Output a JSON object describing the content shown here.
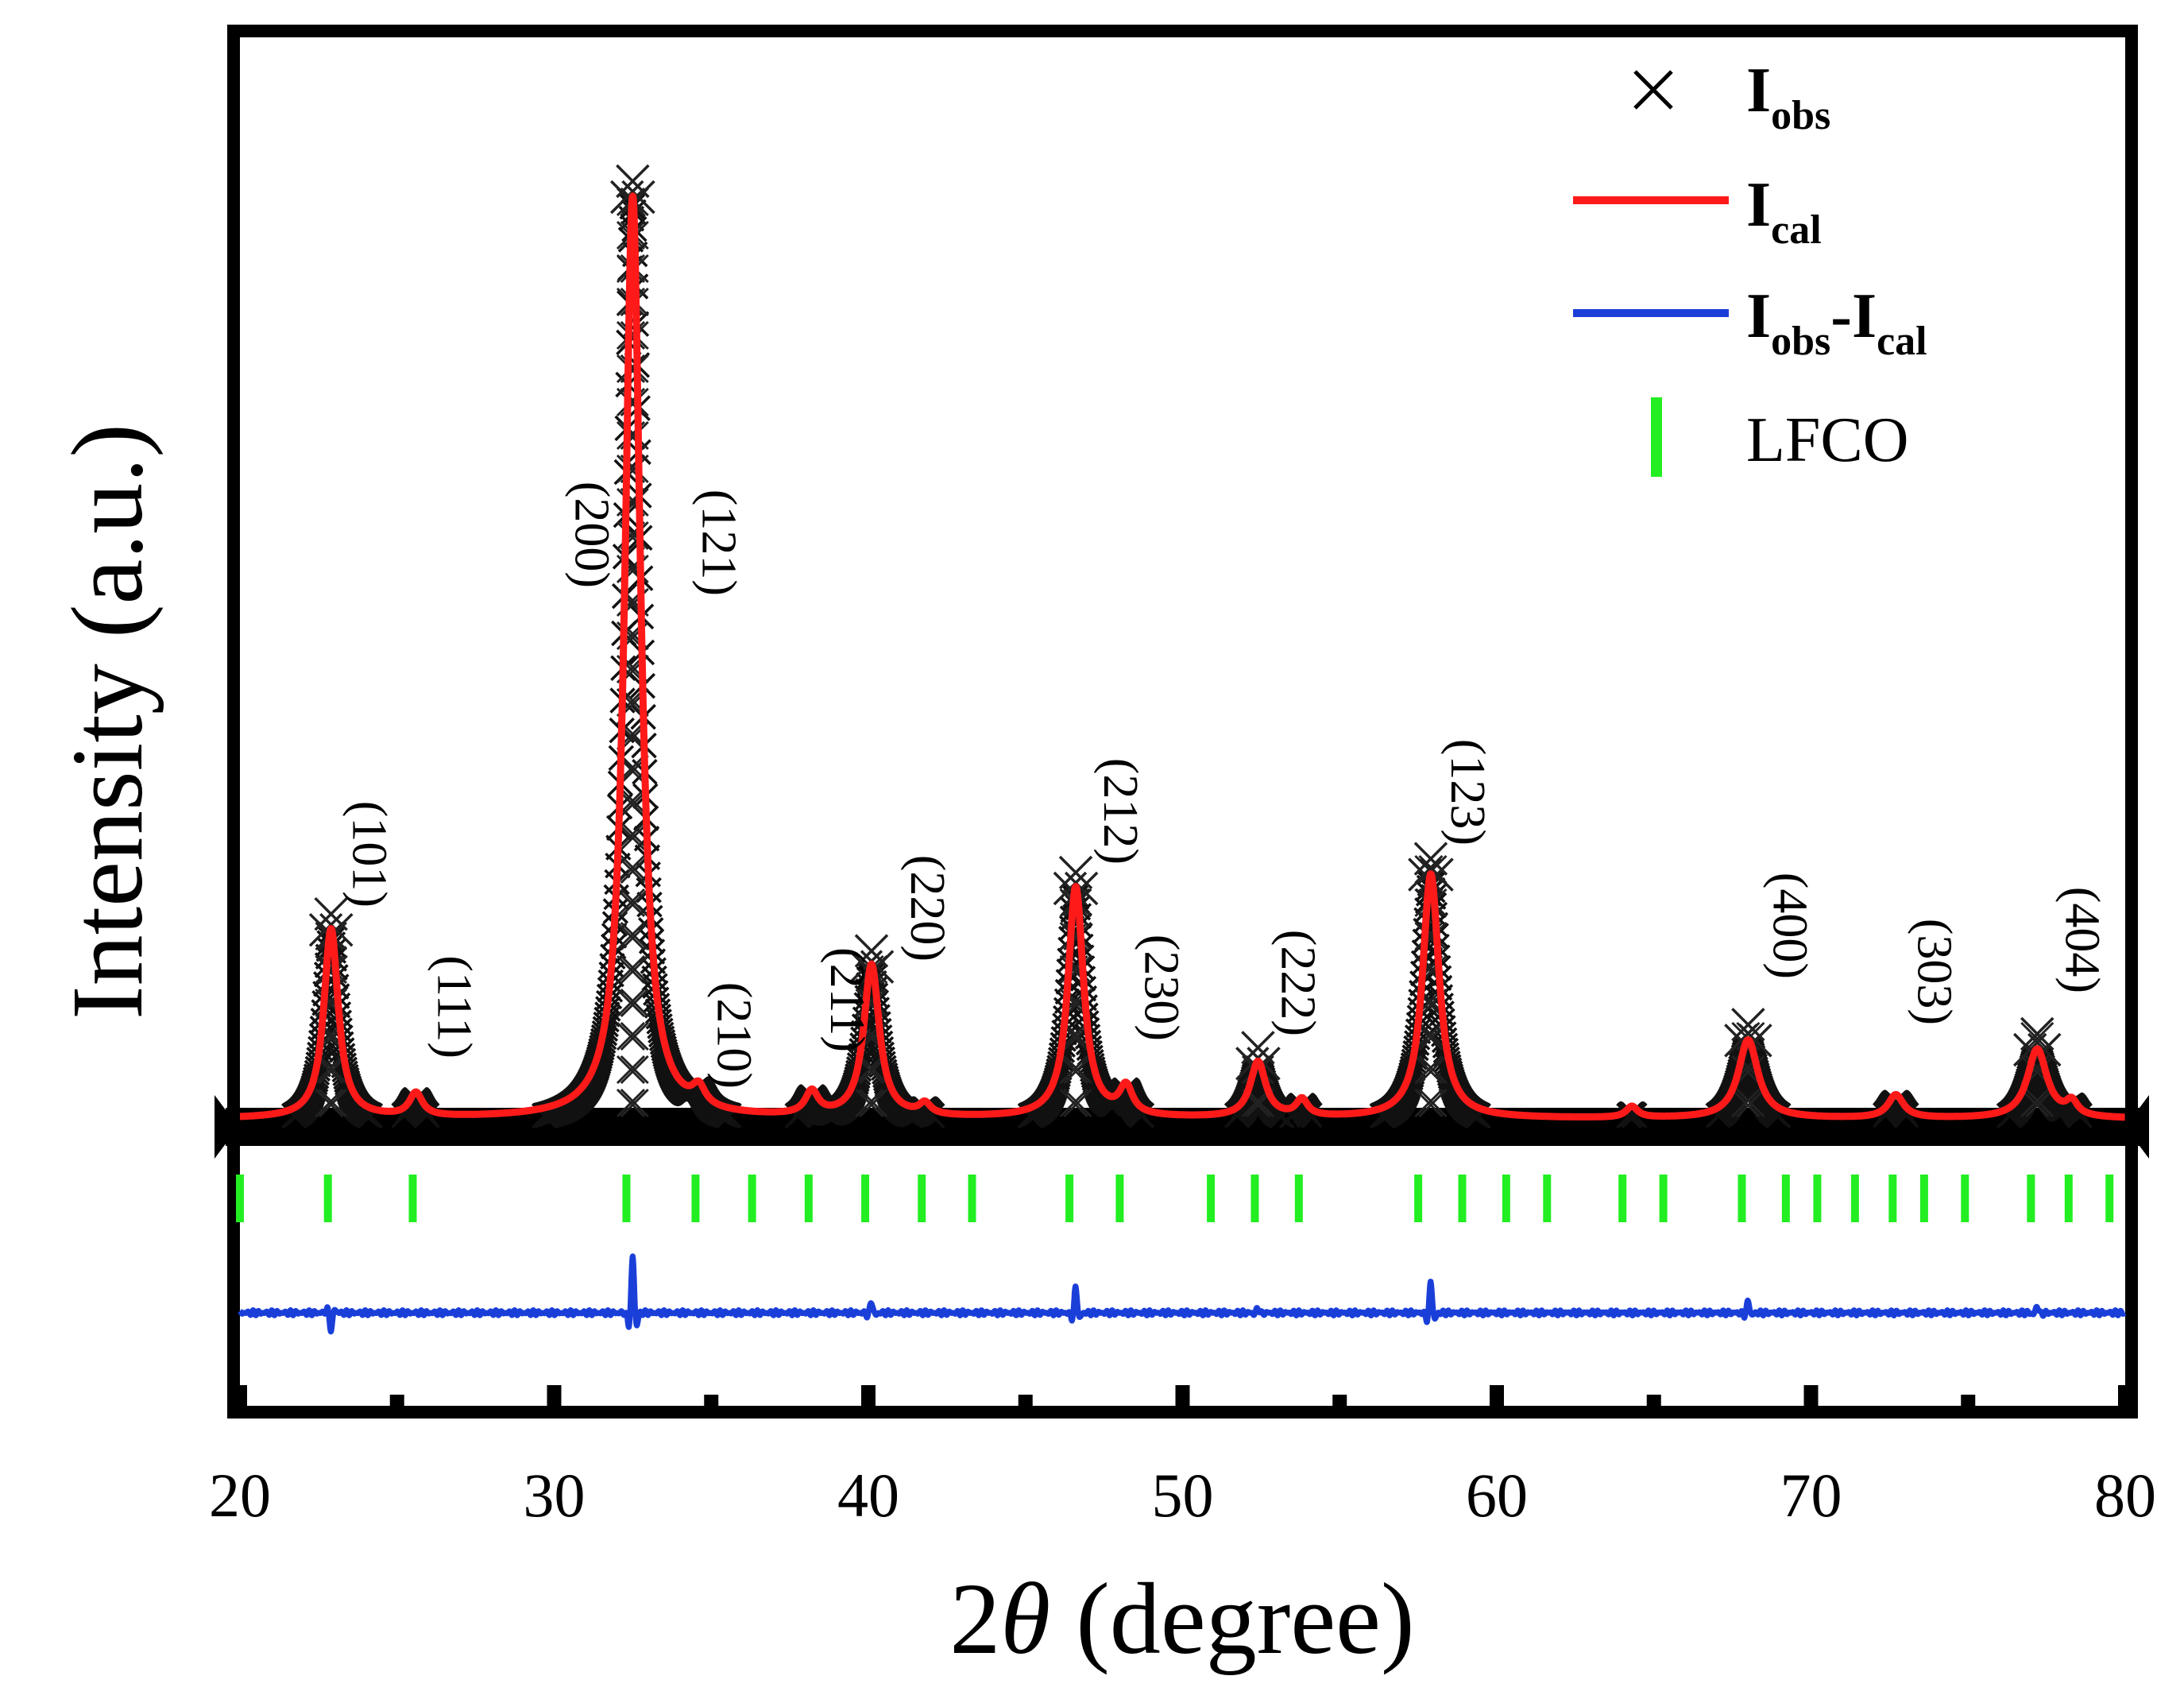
{
  "chart_data": {
    "type": "line",
    "xlabel_prefix": "2",
    "xlabel_symbol": "θ",
    "xlabel_suffix": " (degree)",
    "ylabel": "Intensity (a.u.)",
    "xlim": [
      20,
      80
    ],
    "xticks": [
      "20",
      "30",
      "40",
      "50",
      "60",
      "70",
      "80"
    ],
    "legend_position": "top-right",
    "legend": [
      {
        "key": "obs",
        "main": "I",
        "sub": "obs",
        "marker": "x",
        "color": "#000000"
      },
      {
        "key": "cal",
        "main": "I",
        "sub": "cal",
        "marker": "line",
        "color": "#ff1a1a"
      },
      {
        "key": "diff",
        "main": "I",
        "sub": "obs",
        "main2": "-I",
        "sub2": "cal",
        "marker": "line",
        "color": "#1a3fd9"
      },
      {
        "key": "bragg",
        "text": "LFCO",
        "marker": "vbar",
        "color": "#22ee22"
      }
    ],
    "peaks": [
      {
        "x": 22.9,
        "h": 0.205,
        "w": 0.28,
        "label": "(101)"
      },
      {
        "x": 25.6,
        "h": 0.025,
        "w": 0.25,
        "label": "(111)"
      },
      {
        "x": 32.5,
        "h": 1.0,
        "w": 0.3,
        "label": "(200)"
      },
      {
        "x": 32.5,
        "h": 0.0,
        "w": 0.3,
        "label": "(121)"
      },
      {
        "x": 34.6,
        "h": 0.02,
        "w": 0.25,
        "label": "(210)"
      },
      {
        "x": 38.2,
        "h": 0.025,
        "w": 0.25,
        "label": "(211)"
      },
      {
        "x": 40.1,
        "h": 0.165,
        "w": 0.3,
        "label": "(220)"
      },
      {
        "x": 46.6,
        "h": 0.25,
        "w": 0.3,
        "label": "(212)"
      },
      {
        "x": 48.2,
        "h": 0.03,
        "w": 0.25,
        "label": "(230)"
      },
      {
        "x": 52.4,
        "h": 0.06,
        "w": 0.3,
        "label": "(222)"
      },
      {
        "x": 57.9,
        "h": 0.265,
        "w": 0.32,
        "label": "(123)"
      },
      {
        "x": 68.0,
        "h": 0.085,
        "w": 0.38,
        "label": "(400)"
      },
      {
        "x": 72.7,
        "h": 0.025,
        "w": 0.3,
        "label": "(303)"
      },
      {
        "x": 77.2,
        "h": 0.075,
        "w": 0.38,
        "label": "(404)"
      }
    ],
    "minor_peaks": [
      {
        "x": 41.8,
        "h": 0.012
      },
      {
        "x": 53.8,
        "h": 0.018
      },
      {
        "x": 64.3,
        "h": 0.012
      },
      {
        "x": 78.3,
        "h": 0.015
      }
    ],
    "bragg_positions": [
      20.0,
      22.8,
      25.5,
      32.3,
      34.5,
      36.3,
      38.1,
      39.9,
      41.7,
      43.3,
      46.4,
      48.0,
      50.9,
      52.3,
      53.7,
      57.5,
      58.9,
      60.3,
      61.6,
      64.0,
      65.3,
      67.8,
      69.2,
      70.2,
      71.4,
      72.6,
      73.6,
      74.9,
      77.0,
      78.2,
      79.5
    ],
    "diff_spikes": [
      {
        "x": 22.9,
        "a": -0.3
      },
      {
        "x": 32.5,
        "a": 1.0
      },
      {
        "x": 40.1,
        "a": 0.2
      },
      {
        "x": 46.6,
        "a": 0.45
      },
      {
        "x": 52.4,
        "a": 0.08
      },
      {
        "x": 57.9,
        "a": 0.55
      },
      {
        "x": 68.0,
        "a": 0.2
      },
      {
        "x": 77.2,
        "a": 0.12
      }
    ]
  }
}
